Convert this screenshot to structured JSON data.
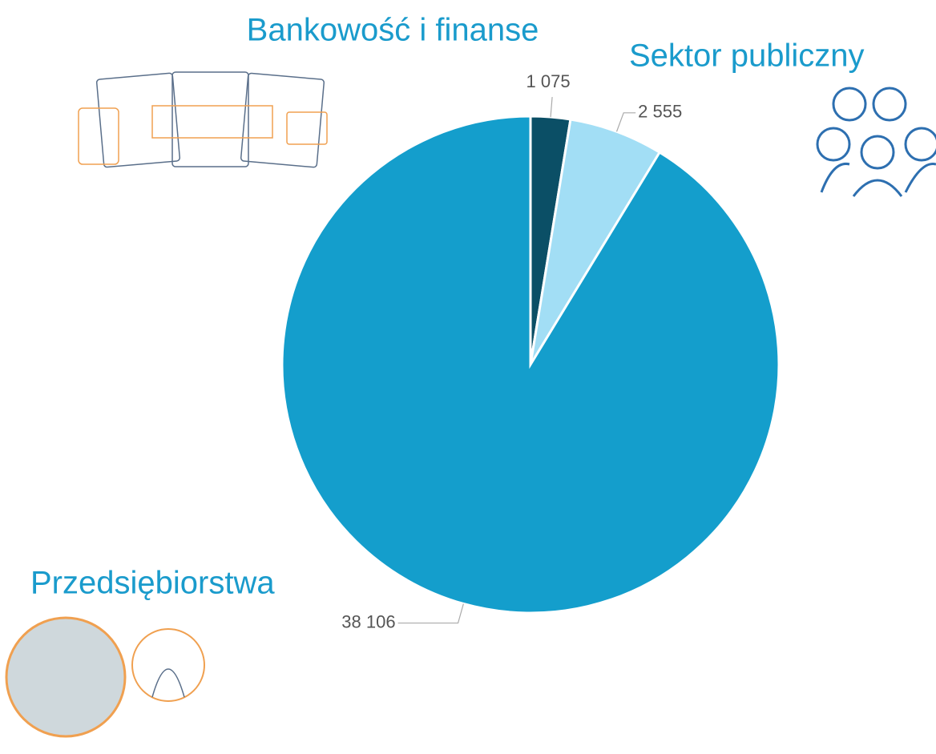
{
  "chart_data": {
    "type": "pie",
    "categories": [
      "Bankowość i finanse",
      "Sektor publiczny",
      "Przedsiębiorstwa"
    ],
    "values": [
      1075,
      2555,
      38106
    ],
    "value_labels": [
      "1 075",
      "2 555",
      "38 106"
    ],
    "colors": [
      "#0b4f66",
      "#a2def5",
      "#149ecc"
    ]
  }
}
